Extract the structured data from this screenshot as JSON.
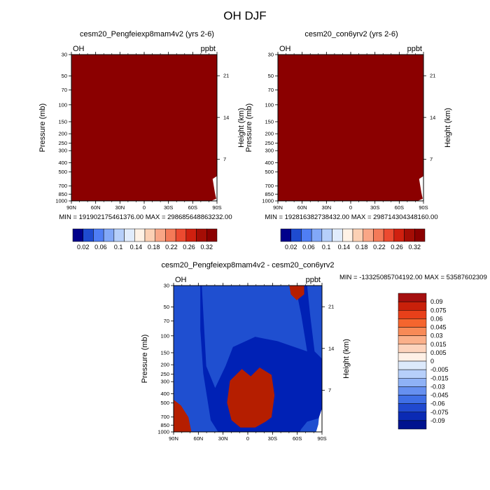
{
  "figure": {
    "title": "OH DJF",
    "background": "#ffffff"
  },
  "chart_data": [
    {
      "type": "heatmap",
      "title": "cesm20_Pengfeiexp8mam4v2 (yrs 2-6)",
      "variable": "OH",
      "units": "ppbt",
      "xlabel": "",
      "ylabel": "Pressure (mb)",
      "ylabel_right": "Height (km)",
      "x_ticks": [
        "90N",
        "60N",
        "30N",
        "0",
        "30S",
        "60S",
        "90S"
      ],
      "y_ticks": [
        "30",
        "50",
        "70",
        "100",
        "150",
        "200",
        "250",
        "300",
        "400",
        "500",
        "700",
        "850",
        "1000"
      ],
      "y_ticks_right": [
        "21",
        "14",
        "7"
      ],
      "ylim": [
        1000,
        30
      ],
      "log_y": true,
      "stats_text": "MIN = 191902175461376.00   MAX = 298685648863232.00",
      "fill_color": "#8b0000",
      "colorbar": {
        "labels": [
          "0.02",
          "0.06",
          "0.1",
          "0.14",
          "0.18",
          "0.22",
          "0.26",
          "0.32"
        ],
        "colors": [
          "#00008b",
          "#1e4bd0",
          "#4f7ef5",
          "#82a8f8",
          "#b6cffa",
          "#e1ecfc",
          "#fff2e6",
          "#fcd0b4",
          "#f9a686",
          "#f47a58",
          "#ec4a30",
          "#d0200f",
          "#a50d05",
          "#8b0000"
        ],
        "orientation": "horizontal"
      }
    },
    {
      "type": "heatmap",
      "title": "cesm20_con6yrv2 (yrs 2-6)",
      "variable": "OH",
      "units": "ppbt",
      "xlabel": "",
      "ylabel": "Pressure (mb)",
      "ylabel_right": "Height (km)",
      "x_ticks": [
        "90N",
        "60N",
        "30N",
        "0",
        "30S",
        "60S",
        "90S"
      ],
      "y_ticks": [
        "30",
        "50",
        "70",
        "100",
        "150",
        "200",
        "250",
        "300",
        "400",
        "500",
        "700",
        "850",
        "1000"
      ],
      "y_ticks_right": [
        "21",
        "14",
        "7"
      ],
      "ylim": [
        1000,
        30
      ],
      "log_y": true,
      "stats_text": "MIN = 192816382738432.00   MAX = 298714304348160.00",
      "fill_color": "#8b0000",
      "colorbar": {
        "labels": [
          "0.02",
          "0.06",
          "0.1",
          "0.14",
          "0.18",
          "0.22",
          "0.26",
          "0.32"
        ],
        "colors": [
          "#00008b",
          "#1e4bd0",
          "#4f7ef5",
          "#82a8f8",
          "#b6cffa",
          "#e1ecfc",
          "#fff2e6",
          "#fcd0b4",
          "#f9a686",
          "#f47a58",
          "#ec4a30",
          "#d0200f",
          "#a50d05",
          "#8b0000"
        ],
        "orientation": "horizontal"
      }
    },
    {
      "type": "heatmap",
      "title": "cesm20_Pengfeiexp8mam4v2 - cesm20_con6yrv2",
      "variable": "OH",
      "units": "ppbt",
      "xlabel": "",
      "ylabel": "Pressure (mb)",
      "ylabel_right": "Height (km)",
      "x_ticks": [
        "90N",
        "60N",
        "30N",
        "0",
        "30S",
        "60S",
        "90S"
      ],
      "y_ticks": [
        "30",
        "50",
        "70",
        "100",
        "150",
        "200",
        "250",
        "300",
        "400",
        "500",
        "700",
        "850",
        "1000"
      ],
      "y_ticks_right": [
        "21",
        "14",
        "7"
      ],
      "ylim": [
        1000,
        30
      ],
      "log_y": true,
      "stats_text": "MIN = -13325085704192.00   MAX = 53587602309",
      "region_colors": {
        "background": "#1f4fd0",
        "negative_region": "#0021b5",
        "positive_region": "#b51e00"
      },
      "colorbar": {
        "labels": [
          "0.09",
          "0.075",
          "0.06",
          "0.045",
          "0.03",
          "0.015",
          "0.005",
          "0",
          "-0.005",
          "-0.015",
          "-0.03",
          "-0.045",
          "-0.06",
          "-0.075",
          "-0.09"
        ],
        "colors": [
          "#a50f0f",
          "#c9200a",
          "#e8401a",
          "#f5652e",
          "#f88a57",
          "#fbb08a",
          "#fdd3bc",
          "#fff0e6",
          "#dce9fb",
          "#b6cffa",
          "#8fb2f6",
          "#6690f0",
          "#3f6fe6",
          "#2049cf",
          "#0a2ab4",
          "#00128f"
        ],
        "orientation": "vertical"
      }
    }
  ]
}
